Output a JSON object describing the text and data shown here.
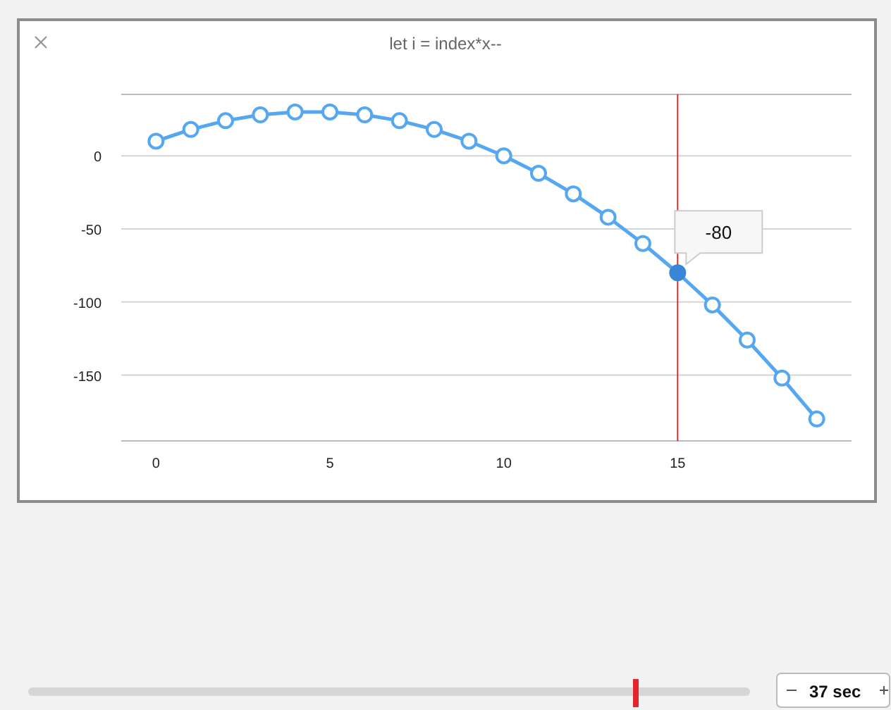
{
  "chart_data": {
    "type": "line",
    "title": "let i = index*x--",
    "x": [
      0,
      1,
      2,
      3,
      4,
      5,
      6,
      7,
      8,
      9,
      10,
      11,
      12,
      13,
      14,
      15,
      16,
      17,
      18,
      19
    ],
    "series": [
      {
        "color": "#55a7f2",
        "values": [
          10,
          18,
          24,
          28,
          30,
          30,
          28,
          24,
          18,
          10,
          0,
          -12,
          -26,
          -42,
          -60,
          -80,
          -102,
          -126,
          -152,
          -180
        ]
      }
    ],
    "xlim": [
      -1,
      20
    ],
    "xticks": [
      0,
      5,
      10,
      15
    ],
    "ylim": [
      -195,
      42
    ],
    "yticks": [
      0,
      -50,
      -100,
      -150
    ],
    "grid": "y",
    "marker": "circle",
    "line_style": "solid",
    "ref_lines": [
      {
        "axis": "x",
        "value": 15,
        "color": "#d0312d"
      }
    ],
    "annotations": [
      {
        "text": "-80",
        "x": 15,
        "y": -80
      },
      "37 sec"
    ]
  }
}
